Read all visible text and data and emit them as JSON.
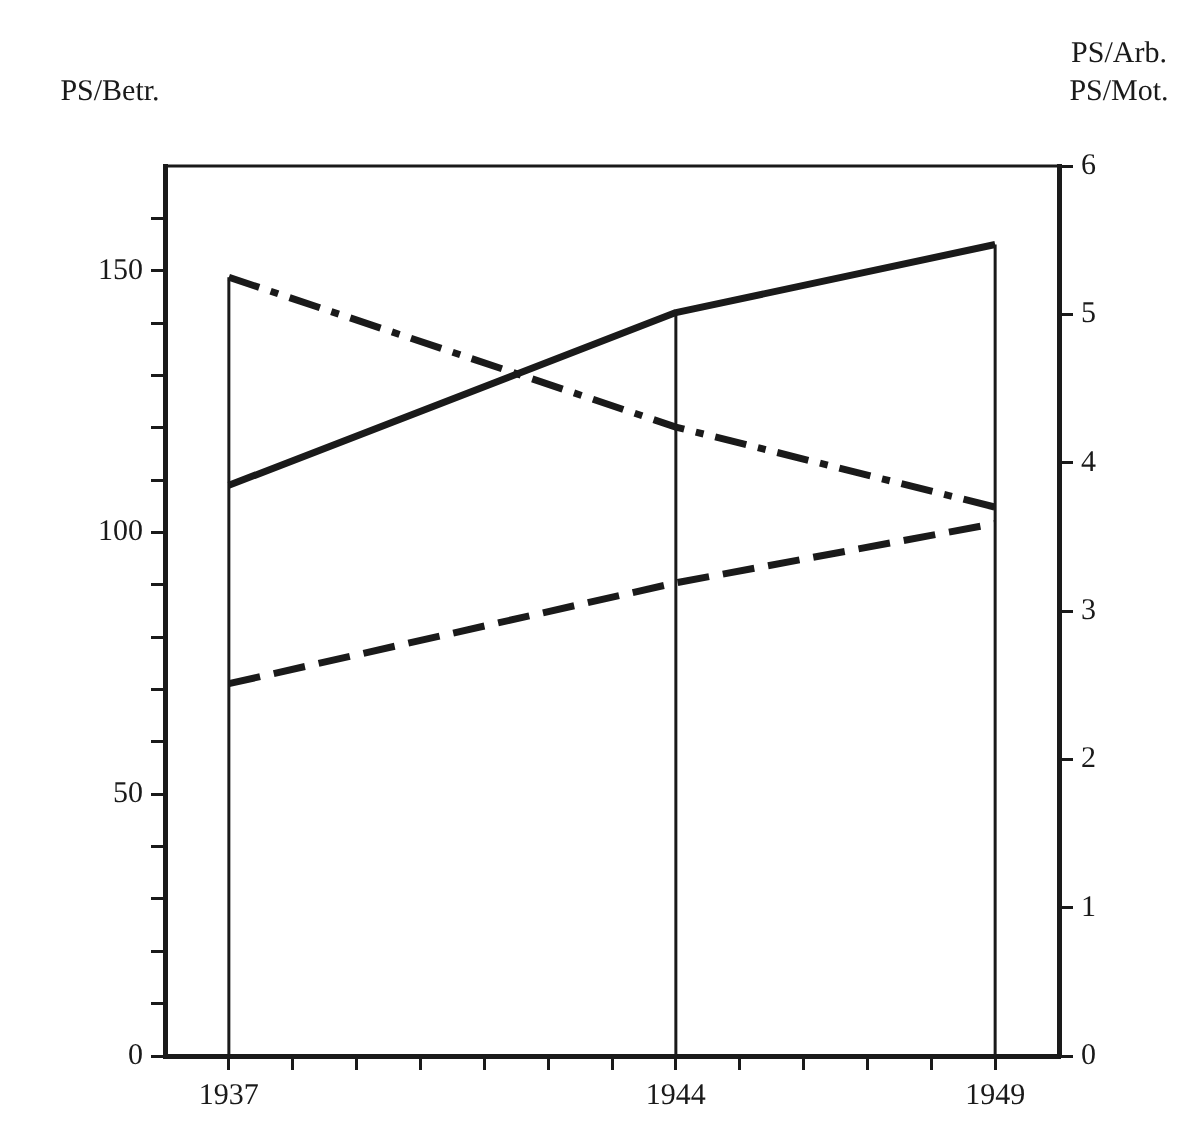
{
  "chart_data": {
    "type": "line",
    "ylabel": "PS/Betr.",
    "y2label": "PS/Arb.\nPS/Mot.",
    "x": [
      1937,
      1944,
      1949
    ],
    "series": [
      {
        "color": "#1a1a1a",
        "line_style": "solid",
        "values": [
          109,
          142,
          155
        ]
      },
      {
        "color": "#1a1a1a",
        "line_style": "dashdot",
        "axis": "y2",
        "values": [
          5.25,
          4.24,
          3.7
        ]
      },
      {
        "color": "#1a1a1a",
        "line_style": "dashed",
        "axis": "y2",
        "values": [
          2.51,
          3.19,
          3.59
        ]
      }
    ],
    "xlim": [
      1936,
      1950
    ],
    "xticks": [
      1937,
      {
        "value": 1938,
        "label": null
      },
      {
        "value": 1939,
        "label": null
      },
      {
        "value": 1940,
        "label": null
      },
      {
        "value": 1941,
        "label": null
      },
      {
        "value": 1942,
        "label": null
      },
      {
        "value": 1943,
        "label": null
      },
      1944,
      {
        "value": 1945,
        "label": null
      },
      {
        "value": 1946,
        "label": null
      },
      {
        "value": 1947,
        "label": null
      },
      {
        "value": 1948,
        "label": null
      },
      1949
    ],
    "ylim": [
      0,
      170
    ],
    "yticks": [
      0,
      {
        "value": 10,
        "label": null
      },
      {
        "value": 20,
        "label": null
      },
      {
        "value": 30,
        "label": null
      },
      {
        "value": 40,
        "label": null
      },
      50,
      {
        "value": 60,
        "label": null
      },
      {
        "value": 70,
        "label": null
      },
      {
        "value": 80,
        "label": null
      },
      {
        "value": 90,
        "label": null
      },
      100,
      {
        "value": 110,
        "label": null
      },
      {
        "value": 120,
        "label": null
      },
      {
        "value": 130,
        "label": null
      },
      {
        "value": 140,
        "label": null
      },
      150,
      {
        "value": 160,
        "label": null
      }
    ],
    "y2lim": [
      0,
      6
    ],
    "y2ticks": [
      0,
      1,
      2,
      3,
      4,
      5,
      6
    ],
    "ref_lines": [
      {
        "axis": "x",
        "value": 1937
      },
      {
        "axis": "x",
        "value": 1944
      },
      {
        "axis": "x",
        "value": 1949
      }
    ],
    "grid": false,
    "legend": false,
    "marker": "none"
  }
}
